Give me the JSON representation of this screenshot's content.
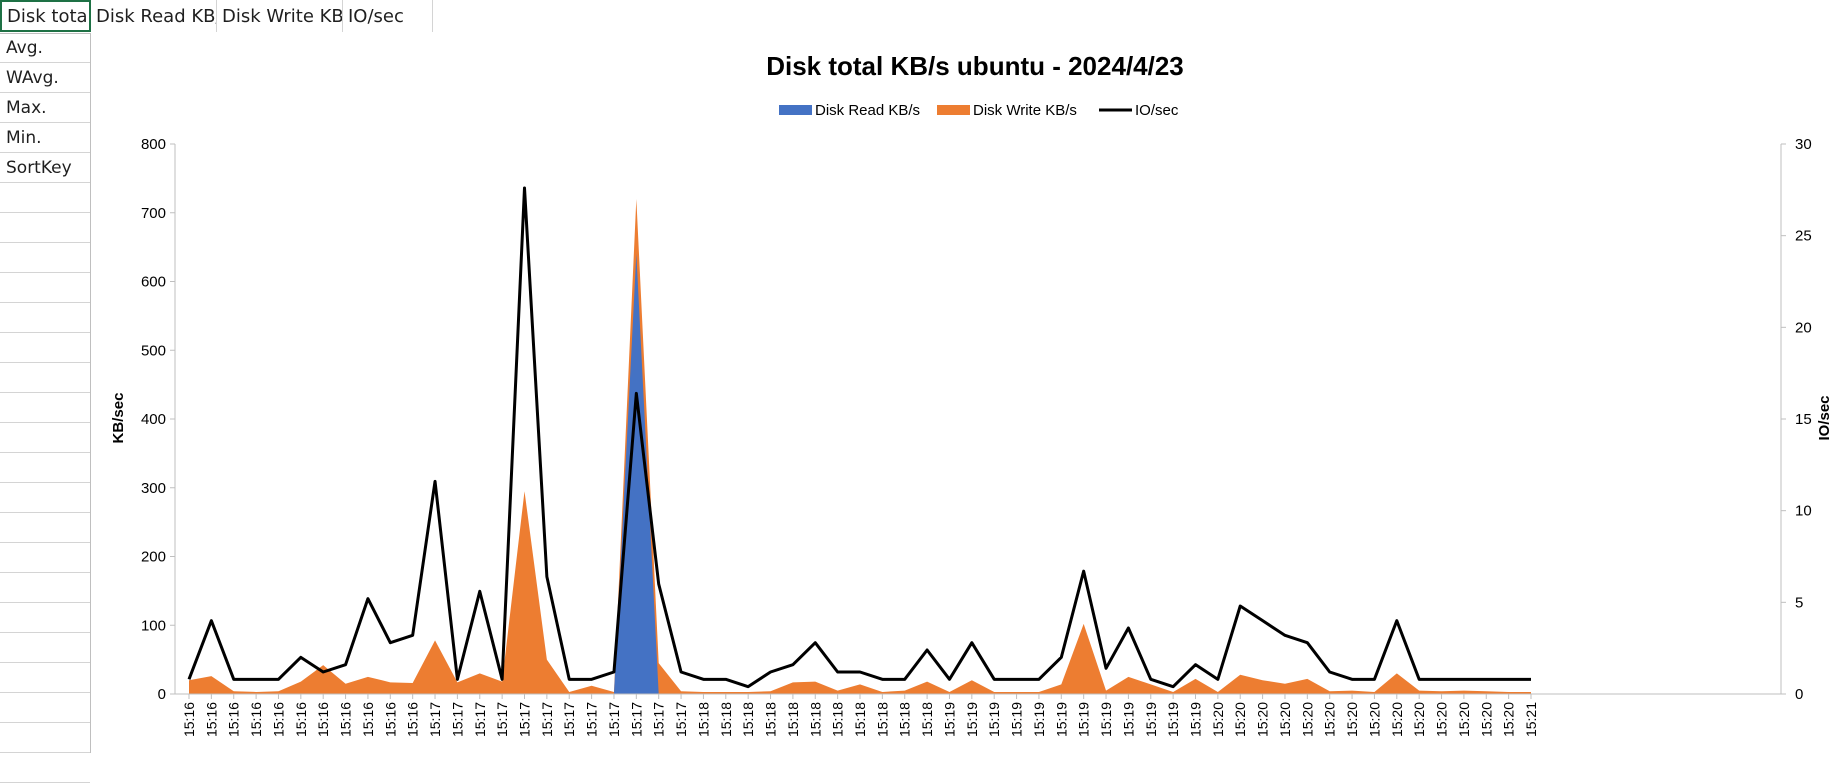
{
  "sheet": {
    "header_cells": [
      "Disk total",
      "Disk Read KB/",
      "Disk Write KB/",
      "IO/sec"
    ],
    "row_labels": [
      "Avg.",
      "WAvg.",
      "Max.",
      "Min.",
      "SortKey"
    ]
  },
  "chart_data": {
    "type": "area",
    "title": "Disk total KB/s ubuntu - 2024/4/23",
    "ylabel": "KB/sec",
    "y2label": "IO/sec",
    "ylim": [
      0,
      800
    ],
    "y2lim": [
      0,
      30
    ],
    "yticks": [
      0,
      100,
      200,
      300,
      400,
      500,
      600,
      700,
      800
    ],
    "y2ticks": [
      0,
      5,
      10,
      15,
      20,
      25,
      30
    ],
    "grid": false,
    "legend_position": "top",
    "categories": [
      "15:16",
      "15:16",
      "15:16",
      "15:16",
      "15:16",
      "15:16",
      "15:16",
      "15:16",
      "15:16",
      "15:16",
      "15:16",
      "15:17",
      "15:17",
      "15:17",
      "15:17",
      "15:17",
      "15:17",
      "15:17",
      "15:17",
      "15:17",
      "15:17",
      "15:17",
      "15:17",
      "15:18",
      "15:18",
      "15:18",
      "15:18",
      "15:18",
      "15:18",
      "15:18",
      "15:18",
      "15:18",
      "15:18",
      "15:18",
      "15:19",
      "15:19",
      "15:19",
      "15:19",
      "15:19",
      "15:19",
      "15:19",
      "15:19",
      "15:19",
      "15:19",
      "15:19",
      "15:19",
      "15:20",
      "15:20",
      "15:20",
      "15:20",
      "15:20",
      "15:20",
      "15:20",
      "15:20",
      "15:20",
      "15:20",
      "15:20",
      "15:20",
      "15:20",
      "15:20",
      "15:21"
    ],
    "series": [
      {
        "name": "Disk Read KB/s",
        "type": "area",
        "axis": "left",
        "color": "#4472C4",
        "values": [
          0,
          0,
          0,
          0,
          0,
          0,
          0,
          0,
          0,
          0,
          0,
          0,
          0,
          0,
          0,
          0,
          0,
          0,
          0,
          0,
          640,
          0,
          0,
          0,
          0,
          0,
          0,
          0,
          0,
          0,
          0,
          0,
          0,
          0,
          0,
          0,
          0,
          0,
          0,
          0,
          0,
          0,
          0,
          0,
          0,
          0,
          0,
          0,
          0,
          0,
          0,
          0,
          0,
          0,
          0,
          0,
          0,
          0,
          0,
          0,
          0
        ]
      },
      {
        "name": "Disk Write KB/s",
        "type": "area",
        "axis": "left",
        "color": "#ED7D31",
        "values": [
          20,
          26,
          4,
          3,
          4,
          18,
          42,
          15,
          25,
          17,
          16,
          78,
          17,
          30,
          18,
          295,
          50,
          3,
          12,
          3,
          720,
          45,
          4,
          3,
          3,
          3,
          4,
          17,
          18,
          5,
          14,
          3,
          5,
          18,
          3,
          20,
          3,
          3,
          3,
          14,
          102,
          5,
          25,
          14,
          3,
          22,
          3,
          28,
          20,
          15,
          22,
          4,
          5,
          3,
          30,
          5,
          4,
          5,
          4,
          3,
          3
        ]
      },
      {
        "name": "IO/sec",
        "type": "line",
        "axis": "right",
        "color": "#000000",
        "values": [
          0.8,
          4,
          0.8,
          0.8,
          0.8,
          2,
          1.2,
          1.6,
          5.2,
          2.8,
          3.2,
          11.6,
          0.8,
          5.6,
          0.8,
          27.6,
          6.4,
          0.8,
          0.8,
          1.2,
          16.4,
          6,
          1.2,
          0.8,
          0.8,
          0.4,
          1.2,
          1.6,
          2.8,
          1.2,
          1.2,
          0.8,
          0.8,
          2.4,
          0.8,
          2.8,
          0.8,
          0.8,
          0.8,
          2,
          6.7,
          1.4,
          3.6,
          0.8,
          0.4,
          1.6,
          0.8,
          4.8,
          4,
          3.2,
          2.8,
          1.2,
          0.8,
          0.8,
          4,
          0.8,
          0.8,
          0.8,
          0.8,
          0.8,
          0.8
        ]
      }
    ]
  }
}
